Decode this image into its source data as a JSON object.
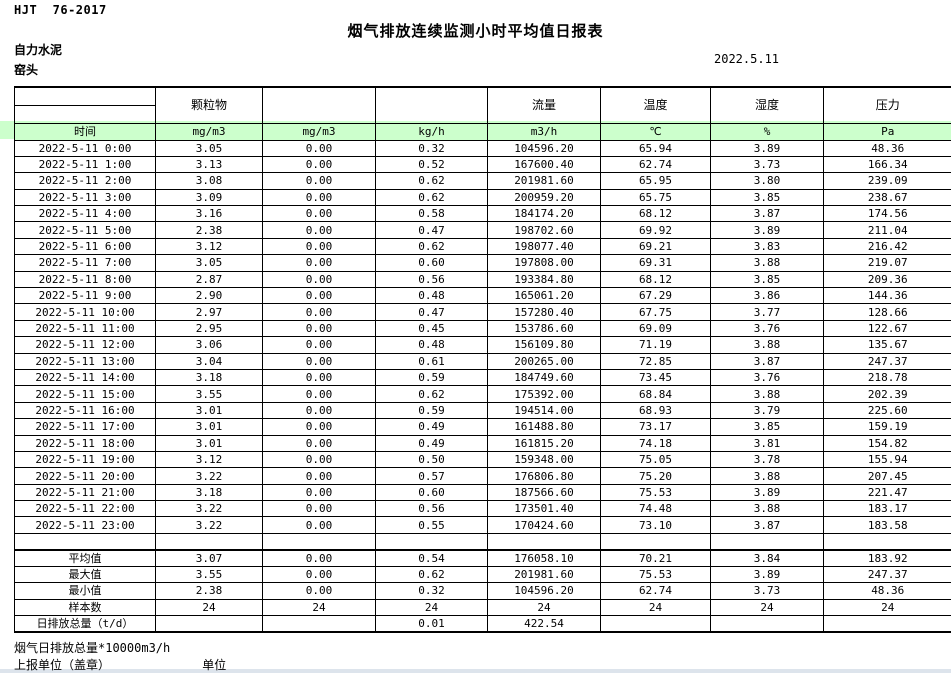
{
  "page": {
    "doc_code": "HJT  76-2017",
    "title": "烟气排放连续监测小时平均值日报表",
    "company": "自力水泥",
    "station": "窑头",
    "date": "2022.5.11",
    "footer_note": "烟气日排放总量*10000m3/h",
    "footer_report_unit": "上报单位（盖章）",
    "footer_unit_label": "单位"
  },
  "table": {
    "header_green_color": "#ccffcc",
    "group_headers": [
      "",
      "颗粒物",
      "",
      "",
      "流量",
      "温度",
      "湿度",
      "压力"
    ],
    "unit_headers": [
      "时间",
      "mg/m3",
      "mg/m3",
      "kg/h",
      "m3/h",
      "℃",
      "%",
      "Pa"
    ],
    "rows": [
      [
        "2022-5-11 0:00",
        "3.05",
        "0.00",
        "0.32",
        "104596.20",
        "65.94",
        "3.89",
        "48.36"
      ],
      [
        "2022-5-11 1:00",
        "3.13",
        "0.00",
        "0.52",
        "167600.40",
        "62.74",
        "3.73",
        "166.34"
      ],
      [
        "2022-5-11 2:00",
        "3.08",
        "0.00",
        "0.62",
        "201981.60",
        "65.95",
        "3.80",
        "239.09"
      ],
      [
        "2022-5-11 3:00",
        "3.09",
        "0.00",
        "0.62",
        "200959.20",
        "65.75",
        "3.85",
        "238.67"
      ],
      [
        "2022-5-11 4:00",
        "3.16",
        "0.00",
        "0.58",
        "184174.20",
        "68.12",
        "3.87",
        "174.56"
      ],
      [
        "2022-5-11 5:00",
        "2.38",
        "0.00",
        "0.47",
        "198702.60",
        "69.92",
        "3.89",
        "211.04"
      ],
      [
        "2022-5-11 6:00",
        "3.12",
        "0.00",
        "0.62",
        "198077.40",
        "69.21",
        "3.83",
        "216.42"
      ],
      [
        "2022-5-11 7:00",
        "3.05",
        "0.00",
        "0.60",
        "197808.00",
        "69.31",
        "3.88",
        "219.07"
      ],
      [
        "2022-5-11 8:00",
        "2.87",
        "0.00",
        "0.56",
        "193384.80",
        "68.12",
        "3.85",
        "209.36"
      ],
      [
        "2022-5-11 9:00",
        "2.90",
        "0.00",
        "0.48",
        "165061.20",
        "67.29",
        "3.86",
        "144.36"
      ],
      [
        "2022-5-11 10:00",
        "2.97",
        "0.00",
        "0.47",
        "157280.40",
        "67.75",
        "3.77",
        "128.66"
      ],
      [
        "2022-5-11 11:00",
        "2.95",
        "0.00",
        "0.45",
        "153786.60",
        "69.09",
        "3.76",
        "122.67"
      ],
      [
        "2022-5-11 12:00",
        "3.06",
        "0.00",
        "0.48",
        "156109.80",
        "71.19",
        "3.88",
        "135.67"
      ],
      [
        "2022-5-11 13:00",
        "3.04",
        "0.00",
        "0.61",
        "200265.00",
        "72.85",
        "3.87",
        "247.37"
      ],
      [
        "2022-5-11 14:00",
        "3.18",
        "0.00",
        "0.59",
        "184749.60",
        "73.45",
        "3.76",
        "218.78"
      ],
      [
        "2022-5-11 15:00",
        "3.55",
        "0.00",
        "0.62",
        "175392.00",
        "68.84",
        "3.88",
        "202.39"
      ],
      [
        "2022-5-11 16:00",
        "3.01",
        "0.00",
        "0.59",
        "194514.00",
        "68.93",
        "3.79",
        "225.60"
      ],
      [
        "2022-5-11 17:00",
        "3.01",
        "0.00",
        "0.49",
        "161488.80",
        "73.17",
        "3.85",
        "159.19"
      ],
      [
        "2022-5-11 18:00",
        "3.01",
        "0.00",
        "0.49",
        "161815.20",
        "74.18",
        "3.81",
        "154.82"
      ],
      [
        "2022-5-11 19:00",
        "3.12",
        "0.00",
        "0.50",
        "159348.00",
        "75.05",
        "3.78",
        "155.94"
      ],
      [
        "2022-5-11 20:00",
        "3.22",
        "0.00",
        "0.57",
        "176806.80",
        "75.20",
        "3.88",
        "207.45"
      ],
      [
        "2022-5-11 21:00",
        "3.18",
        "0.00",
        "0.60",
        "187566.60",
        "75.53",
        "3.89",
        "221.47"
      ],
      [
        "2022-5-11 22:00",
        "3.22",
        "0.00",
        "0.56",
        "173501.40",
        "74.48",
        "3.88",
        "183.17"
      ],
      [
        "2022-5-11 23:00",
        "3.22",
        "0.00",
        "0.55",
        "170424.60",
        "73.10",
        "3.87",
        "183.58"
      ]
    ],
    "summary": [
      {
        "label": "平均值",
        "values": [
          "3.07",
          "0.00",
          "0.54",
          "176058.10",
          "70.21",
          "3.84",
          "183.92"
        ]
      },
      {
        "label": "最大值",
        "values": [
          "3.55",
          "0.00",
          "0.62",
          "201981.60",
          "75.53",
          "3.89",
          "247.37"
        ]
      },
      {
        "label": "最小值",
        "values": [
          "2.38",
          "0.00",
          "0.32",
          "104596.20",
          "62.74",
          "3.73",
          "48.36"
        ]
      },
      {
        "label": "样本数",
        "values": [
          "24",
          "24",
          "24",
          "24",
          "24",
          "24",
          "24"
        ]
      },
      {
        "label": "日排放总量（t/d）",
        "values": [
          "",
          "",
          "0.01",
          "422.54",
          "",
          "",
          ""
        ]
      }
    ]
  }
}
